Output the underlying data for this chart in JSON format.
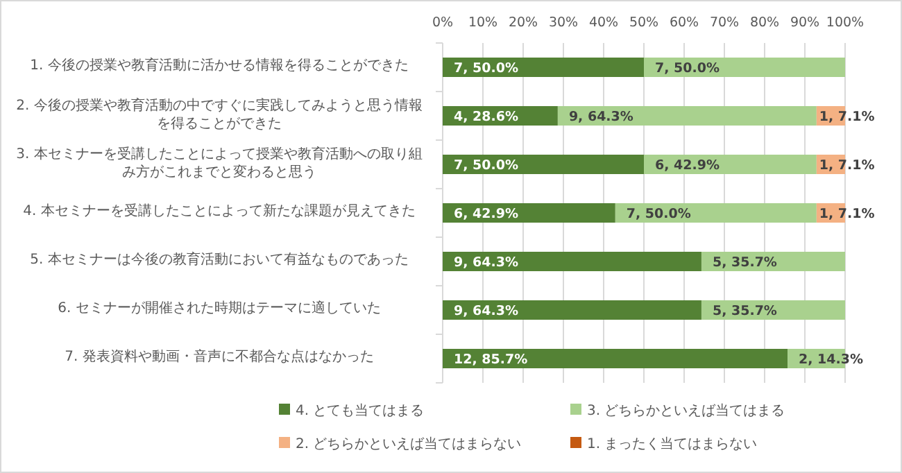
{
  "chart_data": {
    "type": "bar",
    "orientation": "horizontal",
    "stacked": true,
    "grid": "x",
    "legend": "bottom",
    "categories": [
      "1. 今後の授業や教育活動に活かせる情報を得ることができた",
      "2. 今後の授業や教育活動の中ですぐに実践してみようと思う情報を得ることができた",
      "3. 本セミナーを受講したことによって授業や教育活動への取り組み方がこれまでと変わると思う",
      "4. 本セミナーを受講したことによって新たな課題が見えてきた",
      "5. 本セミナーは今後の教育活動において有益なものであった",
      "6. セミナーが開催された時期はテーマに適していた",
      "7. 発表資料や動画・音声に不都合な点はなかった"
    ],
    "xlim": [
      0,
      100
    ],
    "xticks": [
      {
        "value": 0,
        "label": "0%"
      },
      {
        "value": 10,
        "label": "10%"
      },
      {
        "value": 20,
        "label": "20%"
      },
      {
        "value": 30,
        "label": "30%"
      },
      {
        "value": 40,
        "label": "40%"
      },
      {
        "value": 50,
        "label": "50%"
      },
      {
        "value": 60,
        "label": "60%"
      },
      {
        "value": 70,
        "label": "70%"
      },
      {
        "value": 80,
        "label": "80%"
      },
      {
        "value": 90,
        "label": "90%"
      },
      {
        "value": 100,
        "label": "100%"
      }
    ],
    "series": [
      {
        "name": "4. とても当てはまる",
        "color": "#548235",
        "values": [
          50.0,
          28.6,
          50.0,
          42.9,
          64.3,
          64.3,
          85.7
        ],
        "value_labels": [
          "7, 50.0%",
          "4, 28.6%",
          "7, 50.0%",
          "6, 42.9%",
          "9, 64.3%",
          "9, 64.3%",
          "12, 85.7%"
        ]
      },
      {
        "name": "3. どちらかといえば当てはまる",
        "color": "#a9d18e",
        "values": [
          50.0,
          64.3,
          42.9,
          50.0,
          35.7,
          35.7,
          14.3
        ],
        "value_labels": [
          "7, 50.0%",
          "9, 64.3%",
          "6, 42.9%",
          "7, 50.0%",
          "5, 35.7%",
          "5, 35.7%",
          "2, 14.3%"
        ]
      },
      {
        "name": "2. どちらかといえば当てはまらない",
        "color": "#f4b183",
        "values": [
          0,
          7.1,
          7.1,
          7.1,
          0,
          0,
          0
        ],
        "value_labels": [
          null,
          "1, 7.1%",
          "1, 7.1%",
          "1, 7.1%",
          null,
          null,
          null
        ]
      },
      {
        "name": "1. まったく当てはまらない",
        "color": "#c55a11",
        "values": [
          0,
          0,
          0,
          0,
          0,
          0,
          0
        ]
      }
    ]
  }
}
